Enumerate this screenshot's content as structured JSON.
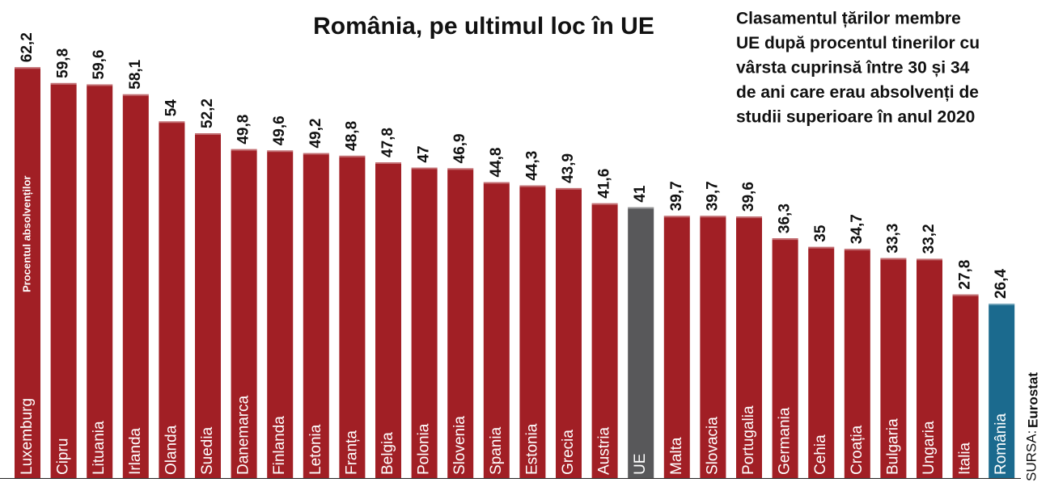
{
  "chart_data": {
    "type": "bar",
    "title": "România, pe ultimul loc în UE",
    "subtitle": [
      "Clasamentul țărilor membre",
      "UE după procentul tinerilor cu",
      "vârsta cuprinsă între 30 și 34",
      "de ani care erau absolvenți de",
      "studii superioare în anul 2020"
    ],
    "y_label": "Procentul absolvenților",
    "source_label": "SURSA:",
    "source": "Eurostat",
    "categories": [
      "Luxemburg",
      "Cipru",
      "Lituania",
      "Irlanda",
      "Olanda",
      "Suedia",
      "Danemarca",
      "Finlanda",
      "Letonia",
      "Franța",
      "Belgia",
      "Polonia",
      "Slovenia",
      "Spania",
      "Estonia",
      "Grecia",
      "Austria",
      "UE",
      "Malta",
      "Slovacia",
      "Portugalia",
      "Germania",
      "Cehia",
      "Croația",
      "Bulgaria",
      "Ungaria",
      "Italia",
      "România"
    ],
    "values": [
      62.2,
      59.8,
      59.6,
      58.1,
      54,
      52.2,
      49.8,
      49.6,
      49.2,
      48.8,
      47.8,
      47,
      46.9,
      44.8,
      44.3,
      43.9,
      41.6,
      41,
      39.7,
      39.7,
      39.6,
      36.3,
      35,
      34.7,
      33.3,
      33.2,
      27.8,
      26.4
    ],
    "value_labels": [
      "62,2",
      "59,8",
      "59,6",
      "58,1",
      "54",
      "52,2",
      "49,8",
      "49,6",
      "49,2",
      "48,8",
      "47,8",
      "47",
      "46,9",
      "44,8",
      "44,3",
      "43,9",
      "41,6",
      "41",
      "39,7",
      "39,7",
      "39,6",
      "36,3",
      "35",
      "34,7",
      "33,3",
      "33,2",
      "27,8",
      "26,4"
    ],
    "colors": [
      "#a11f25",
      "#a11f25",
      "#a11f25",
      "#a11f25",
      "#a11f25",
      "#a11f25",
      "#a11f25",
      "#a11f25",
      "#a11f25",
      "#a11f25",
      "#a11f25",
      "#a11f25",
      "#a11f25",
      "#a11f25",
      "#a11f25",
      "#a11f25",
      "#a11f25",
      "#58585a",
      "#a11f25",
      "#a11f25",
      "#a11f25",
      "#a11f25",
      "#a11f25",
      "#a11f25",
      "#a11f25",
      "#a11f25",
      "#a11f25",
      "#1b6a8e"
    ],
    "ylim": [
      0,
      70
    ]
  }
}
